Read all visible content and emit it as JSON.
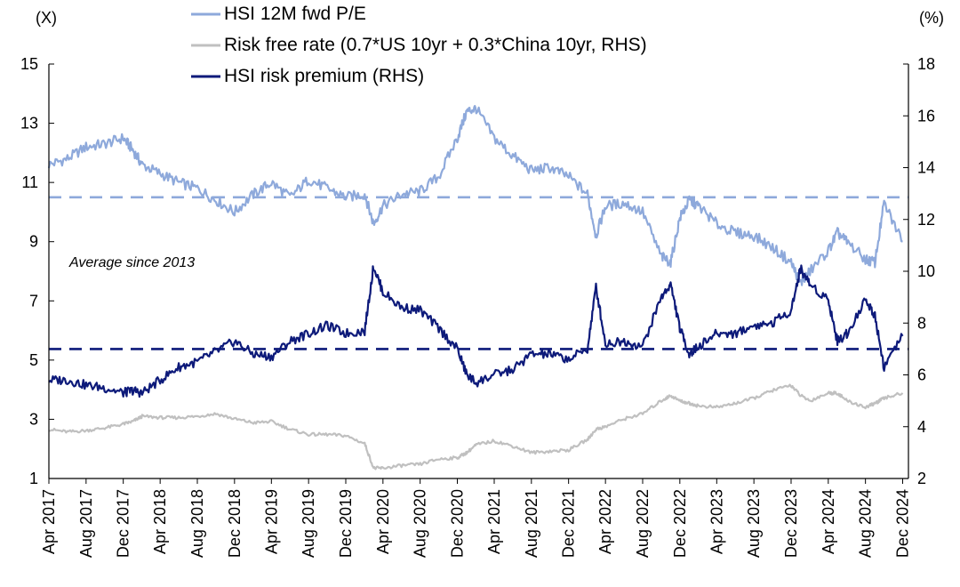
{
  "chart_data": {
    "type": "line",
    "left_axis_unit": "(X)",
    "right_axis_unit": "(%)",
    "left_ylim": [
      1,
      15
    ],
    "right_ylim": [
      2,
      18
    ],
    "left_ticks": [
      "1",
      "3",
      "5",
      "7",
      "9",
      "11",
      "13",
      "15"
    ],
    "right_ticks": [
      "2",
      "4",
      "6",
      "8",
      "10",
      "12",
      "14",
      "16",
      "18"
    ],
    "x_labels": [
      "Apr 2017",
      "Aug 2017",
      "Dec 2017",
      "Apr 2018",
      "Aug 2018",
      "Dec 2018",
      "Apr 2019",
      "Aug 2019",
      "Dec 2019",
      "Apr 2020",
      "Aug 2020",
      "Dec 2020",
      "Apr 2021",
      "Aug 2021",
      "Dec 2021",
      "Apr 2022",
      "Aug 2022",
      "Dec 2022",
      "Apr 2023",
      "Aug 2023",
      "Dec 2023",
      "Apr 2024",
      "Aug 2024",
      "Dec 2024"
    ],
    "grid": false,
    "legend_position": "top",
    "annotations": {
      "average_label": "Average since 2013"
    },
    "x_dates": [
      "2017-04",
      "2017-06",
      "2017-08",
      "2017-10",
      "2017-12",
      "2018-01",
      "2018-02",
      "2018-04",
      "2018-06",
      "2018-08",
      "2018-10",
      "2018-12",
      "2019-02",
      "2019-04",
      "2019-06",
      "2019-08",
      "2019-10",
      "2019-12",
      "2020-02",
      "2020-03",
      "2020-04",
      "2020-06",
      "2020-08",
      "2020-10",
      "2020-12",
      "2021-01",
      "2021-02",
      "2021-04",
      "2021-06",
      "2021-08",
      "2021-10",
      "2021-12",
      "2022-02",
      "2022-03",
      "2022-04",
      "2022-06",
      "2022-08",
      "2022-10",
      "2022-11",
      "2022-12",
      "2023-01",
      "2023-02",
      "2023-04",
      "2023-06",
      "2023-08",
      "2023-10",
      "2023-12",
      "2024-01",
      "2024-02",
      "2024-04",
      "2024-05",
      "2024-06",
      "2024-08",
      "2024-09",
      "2024-10",
      "2024-12"
    ],
    "series": [
      {
        "name": "HSI 12M fwd P/E",
        "axis": "left",
        "color": "#8EA9DB",
        "dash": false,
        "values": [
          11.6,
          11.8,
          12.2,
          12.3,
          12.5,
          12.1,
          11.6,
          11.3,
          11.0,
          10.8,
          10.4,
          10.0,
          10.6,
          11.0,
          10.5,
          11.1,
          10.8,
          10.5,
          10.6,
          9.6,
          10.2,
          10.6,
          10.7,
          11.2,
          12.5,
          13.4,
          13.5,
          12.5,
          11.9,
          11.4,
          11.5,
          11.2,
          10.6,
          9.2,
          10.2,
          10.3,
          10.0,
          8.5,
          8.3,
          9.8,
          10.4,
          10.2,
          9.6,
          9.3,
          9.2,
          8.8,
          8.3,
          7.6,
          8.0,
          8.7,
          9.3,
          9.0,
          8.4,
          8.3,
          10.3,
          9.0
        ]
      },
      {
        "name": "Risk free rate (0.7*US 10yr + 0.3*China 10yr, RHS)",
        "axis": "right",
        "color": "#C0C0C0",
        "dash": false,
        "values": [
          3.9,
          3.8,
          3.85,
          3.95,
          4.1,
          4.2,
          4.4,
          4.35,
          4.35,
          4.4,
          4.5,
          4.3,
          4.15,
          4.2,
          3.9,
          3.7,
          3.7,
          3.65,
          3.35,
          2.4,
          2.4,
          2.5,
          2.55,
          2.75,
          2.8,
          3.0,
          3.3,
          3.45,
          3.25,
          3.0,
          3.05,
          3.1,
          3.5,
          3.9,
          4.0,
          4.3,
          4.5,
          5.0,
          5.2,
          5.0,
          4.9,
          4.8,
          4.75,
          4.9,
          5.1,
          5.4,
          5.6,
          5.2,
          5.0,
          5.3,
          5.3,
          5.0,
          4.75,
          4.9,
          5.1,
          5.3
        ]
      },
      {
        "name": "HSI risk premium (RHS)",
        "axis": "right",
        "color": "#0D1A7A",
        "dash": false,
        "values": [
          5.8,
          5.8,
          5.6,
          5.5,
          5.3,
          5.4,
          5.3,
          5.8,
          6.3,
          6.5,
          6.9,
          7.3,
          6.8,
          6.7,
          7.3,
          7.6,
          7.9,
          7.6,
          7.7,
          10.2,
          9.2,
          8.6,
          8.5,
          7.8,
          7.0,
          6.0,
          5.7,
          6.0,
          6.2,
          6.8,
          6.8,
          6.6,
          7.0,
          9.4,
          7.2,
          7.3,
          7.1,
          9.0,
          9.5,
          7.8,
          6.8,
          7.1,
          7.6,
          7.6,
          7.9,
          8.0,
          8.5,
          10.1,
          9.5,
          8.9,
          7.3,
          7.6,
          8.9,
          8.3,
          6.3,
          7.5
        ]
      },
      {
        "name": "",
        "axis": "left",
        "color": "#8EA9DB",
        "dash": true,
        "values": [
          10.5,
          10.5
        ]
      },
      {
        "name": "",
        "axis": "right",
        "color": "#0D1A7A",
        "dash": true,
        "values": [
          7.0,
          7.0
        ]
      }
    ]
  }
}
